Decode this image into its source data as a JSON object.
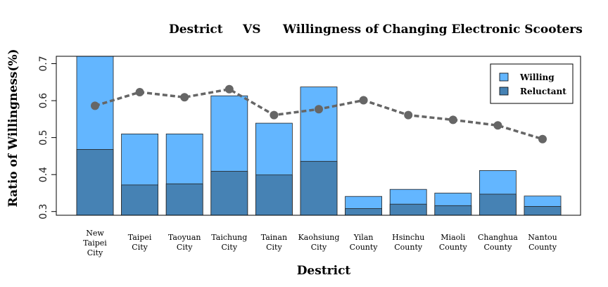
{
  "chart_data": {
    "type": "bar",
    "title_parts": [
      "Destrict",
      "VS",
      "Willingness of Changing Electronic Scooters"
    ],
    "xlabel": "Destrict",
    "ylabel": "Ratio of Willingness(%)",
    "categories": [
      [
        "New",
        "Taipei",
        "City"
      ],
      [
        "Taipei",
        "City"
      ],
      [
        "Taoyuan",
        "City"
      ],
      [
        "Taichung",
        "City"
      ],
      [
        "Tainan",
        "City"
      ],
      [
        "Kaohsiung",
        "City"
      ],
      [
        "Yilan",
        "County"
      ],
      [
        "Hsinchu",
        "County"
      ],
      [
        "Miaoli",
        "County"
      ],
      [
        "Changhua",
        "County"
      ],
      [
        "Nantou",
        "County"
      ]
    ],
    "ylim": [
      0.29,
      0.72
    ],
    "yticks": [
      0.3,
      0.4,
      0.5,
      0.6,
      0.7
    ],
    "grid": false,
    "legend_position": "top-right",
    "series": [
      {
        "name": "Willing",
        "color": "#63b6ff",
        "values": [
          0.72,
          0.51,
          0.51,
          0.613,
          0.539,
          0.637,
          0.341,
          0.36,
          0.35,
          0.411,
          0.342
        ]
      },
      {
        "name": "Reluctant",
        "color": "#4682b4",
        "values": [
          0.468,
          0.372,
          0.375,
          0.409,
          0.399,
          0.436,
          0.308,
          0.32,
          0.316,
          0.347,
          0.314
        ]
      }
    ],
    "line": {
      "style": "dashed",
      "color": "#666666",
      "values": [
        0.586,
        0.623,
        0.609,
        0.631,
        0.561,
        0.577,
        0.601,
        0.561,
        0.548,
        0.533,
        0.496
      ]
    }
  }
}
